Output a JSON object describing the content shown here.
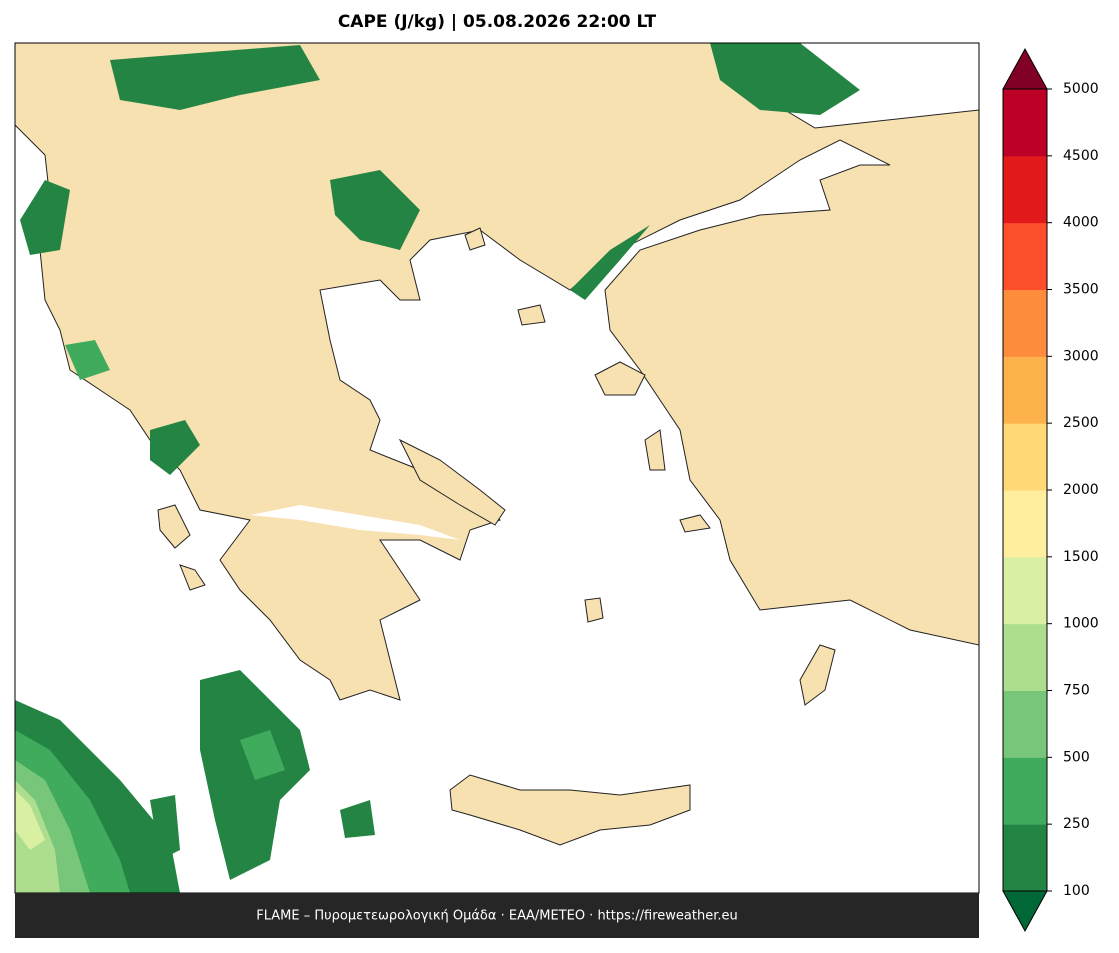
{
  "title": "CAPE (J/kg)  |  05.08.2026 22:00 LT",
  "footer": "FLAME – Πυρομετεωρολογική Ομάδα · ΕΑΑ/METEO · https://fireweather.eu",
  "colorbar": {
    "levels": [
      100,
      250,
      500,
      750,
      1000,
      1500,
      2000,
      2500,
      3000,
      3500,
      4000,
      4500,
      5000
    ],
    "colors": [
      "#238443",
      "#41ab5d",
      "#78c679",
      "#addd8e",
      "#d9f0a3",
      "#ffeda0",
      "#fed976",
      "#feb24c",
      "#fd8d3c",
      "#fc4e2a",
      "#e31a1c",
      "#bd0026"
    ],
    "under_color": "#006837",
    "over_color": "#800026"
  }
}
